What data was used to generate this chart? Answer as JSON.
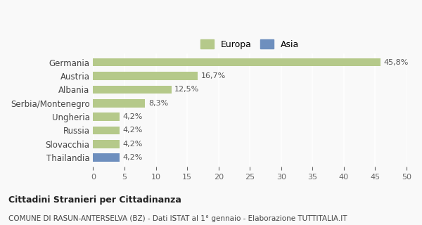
{
  "categories": [
    "Germania",
    "Austria",
    "Albania",
    "Serbia/Montenegro",
    "Ungheria",
    "Russia",
    "Slovacchia",
    "Thailandia"
  ],
  "values": [
    45.8,
    16.7,
    12.5,
    8.3,
    4.2,
    4.2,
    4.2,
    4.2
  ],
  "labels": [
    "45,8%",
    "16,7%",
    "12,5%",
    "8,3%",
    "4,2%",
    "4,2%",
    "4,2%",
    "4,2%"
  ],
  "bar_colors": [
    "#b5c98a",
    "#b5c98a",
    "#b5c98a",
    "#b5c98a",
    "#b5c98a",
    "#b5c98a",
    "#b5c98a",
    "#6e8fbe"
  ],
  "europa_color": "#b5c98a",
  "asia_color": "#6e8fbe",
  "xlim": [
    0,
    50
  ],
  "xticks": [
    0,
    5,
    10,
    15,
    20,
    25,
    30,
    35,
    40,
    45,
    50
  ],
  "title": "Cittadini Stranieri per Cittadinanza",
  "subtitle": "COMUNE DI RASUN-ANTERSELVA (BZ) - Dati ISTAT al 1° gennaio - Elaborazione TUTTITALIA.IT",
  "legend_labels": [
    "Europa",
    "Asia"
  ],
  "background_color": "#f9f9f9"
}
